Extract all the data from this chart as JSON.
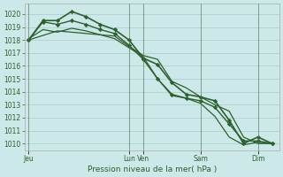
{
  "background_color": "#cce8e8",
  "grid_color": "#aacccc",
  "line_color": "#2d6030",
  "ylabel_text": "Pression niveau de la mer( hPa )",
  "ylim": [
    1009.5,
    1020.8
  ],
  "yticks": [
    1010,
    1011,
    1012,
    1013,
    1014,
    1015,
    1016,
    1017,
    1018,
    1019,
    1020
  ],
  "x_day_labels": [
    "Jeu",
    "Lun",
    "Ven",
    "Sam",
    "Dim"
  ],
  "x_day_positions": [
    0,
    7,
    8,
    12,
    16
  ],
  "xlim": [
    -0.3,
    17.5
  ],
  "series": [
    {
      "x": [
        0,
        1,
        2,
        3,
        4,
        5,
        6,
        7,
        8,
        9,
        10,
        11,
        12,
        13,
        14,
        15,
        16,
        17
      ],
      "y": [
        1018.0,
        1019.5,
        1019.5,
        1020.2,
        1019.8,
        1019.2,
        1018.8,
        1018.0,
        1016.6,
        1016.1,
        1014.7,
        1013.8,
        1013.6,
        1013.3,
        1011.8,
        1010.0,
        1010.5,
        1010.0
      ],
      "has_markers": true,
      "linewidth": 1.2
    },
    {
      "x": [
        0,
        1,
        2,
        3,
        4,
        5,
        6,
        7,
        8,
        9,
        10,
        11,
        12,
        13,
        14,
        15,
        16,
        17
      ],
      "y": [
        1018.0,
        1019.4,
        1019.2,
        1019.5,
        1019.2,
        1018.8,
        1018.5,
        1017.6,
        1016.5,
        1015.0,
        1013.8,
        1013.5,
        1013.3,
        1012.8,
        1011.5,
        1010.2,
        1010.2,
        1010.0
      ],
      "has_markers": true,
      "linewidth": 1.0
    },
    {
      "x": [
        0,
        2,
        4,
        6,
        7,
        8,
        9,
        10,
        11,
        12,
        13,
        14,
        15,
        16,
        17
      ],
      "y": [
        1018.0,
        1018.7,
        1018.5,
        1018.3,
        1017.5,
        1016.8,
        1016.5,
        1014.8,
        1014.3,
        1013.6,
        1013.0,
        1012.5,
        1010.5,
        1010.0,
        1010.0
      ],
      "has_markers": false,
      "linewidth": 0.9
    },
    {
      "x": [
        0,
        1,
        2,
        3,
        4,
        5,
        6,
        7,
        8,
        9,
        10,
        11,
        12,
        13,
        14,
        15,
        16,
        17
      ],
      "y": [
        1018.1,
        1018.8,
        1018.6,
        1018.9,
        1018.7,
        1018.4,
        1018.1,
        1017.4,
        1016.7,
        1015.0,
        1013.7,
        1013.5,
        1013.1,
        1012.1,
        1010.5,
        1009.9,
        1010.1,
        1010.0
      ],
      "has_markers": false,
      "linewidth": 0.9
    }
  ],
  "vlines": [
    0,
    7,
    8,
    12,
    16
  ],
  "tick_fontsize": 5.5,
  "xlabel_fontsize": 6.5
}
